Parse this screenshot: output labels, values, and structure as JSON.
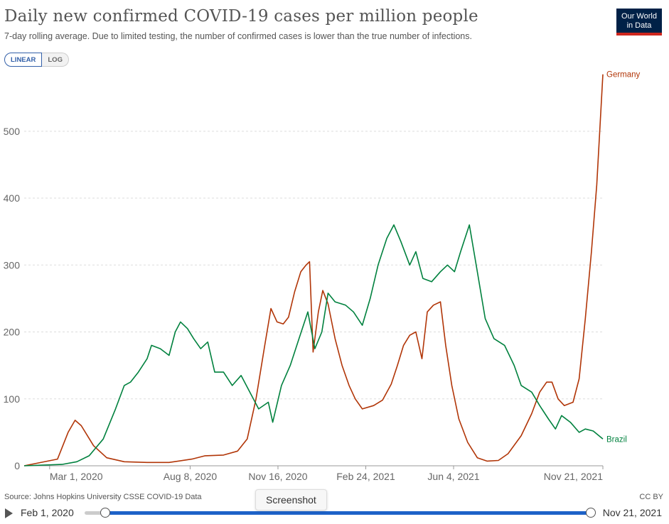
{
  "header": {
    "title": "Daily new confirmed COVID-19 cases per million people",
    "subtitle": "7-day rolling average. Due to limited testing, the number of confirmed cases is lower than the true number of infections.",
    "logo_line1": "Our World",
    "logo_line2": "in Data"
  },
  "toggle": {
    "linear_label": "LINEAR",
    "log_label": "LOG"
  },
  "footer": {
    "source": "Source: Johns Hopkins University CSSE COVID-19 Data",
    "license": "CC BY",
    "tooltip": "Screenshot"
  },
  "timeline": {
    "start_label": "Feb 1, 2020",
    "end_label": "Nov 21, 2021"
  },
  "colors": {
    "germany": "#b13507",
    "brazil": "#00813e",
    "grid": "#dddddd",
    "axis": "#666666"
  },
  "chart_data": {
    "type": "line",
    "title": "Daily new confirmed COVID-19 cases per million people",
    "xlabel": "",
    "ylabel": "",
    "ylim": [
      0,
      590
    ],
    "yticks": [
      0,
      100,
      200,
      300,
      400,
      500
    ],
    "xlim": [
      "2020-02-01",
      "2021-11-21"
    ],
    "xticks": [
      {
        "date": "2020-03-01",
        "label": "Mar 1, 2020"
      },
      {
        "date": "2020-08-08",
        "label": "Aug 8, 2020"
      },
      {
        "date": "2020-11-16",
        "label": "Nov 16, 2020"
      },
      {
        "date": "2021-02-24",
        "label": "Feb 24, 2021"
      },
      {
        "date": "2021-06-04",
        "label": "Jun 4, 2021"
      },
      {
        "date": "2021-11-21",
        "label": "Nov 21, 2021"
      }
    ],
    "grid": true,
    "series": [
      {
        "name": "Germany",
        "color": "#b13507",
        "points": [
          [
            "2020-02-01",
            0
          ],
          [
            "2020-03-10",
            10
          ],
          [
            "2020-03-22",
            50
          ],
          [
            "2020-03-30",
            68
          ],
          [
            "2020-04-06",
            60
          ],
          [
            "2020-04-20",
            30
          ],
          [
            "2020-05-05",
            12
          ],
          [
            "2020-05-25",
            6
          ],
          [
            "2020-06-20",
            5
          ],
          [
            "2020-07-15",
            5
          ],
          [
            "2020-08-10",
            10
          ],
          [
            "2020-08-25",
            15
          ],
          [
            "2020-09-15",
            16
          ],
          [
            "2020-10-01",
            22
          ],
          [
            "2020-10-12",
            40
          ],
          [
            "2020-10-22",
            100
          ],
          [
            "2020-11-01",
            180
          ],
          [
            "2020-11-08",
            235
          ],
          [
            "2020-11-15",
            215
          ],
          [
            "2020-11-22",
            212
          ],
          [
            "2020-11-28",
            222
          ],
          [
            "2020-12-05",
            260
          ],
          [
            "2020-12-12",
            290
          ],
          [
            "2020-12-18",
            300
          ],
          [
            "2020-12-22",
            305
          ],
          [
            "2020-12-26",
            170
          ],
          [
            "2021-01-01",
            230
          ],
          [
            "2021-01-06",
            262
          ],
          [
            "2021-01-12",
            242
          ],
          [
            "2021-01-20",
            190
          ],
          [
            "2021-01-28",
            150
          ],
          [
            "2021-02-05",
            120
          ],
          [
            "2021-02-12",
            100
          ],
          [
            "2021-02-20",
            85
          ],
          [
            "2021-03-05",
            90
          ],
          [
            "2021-03-15",
            98
          ],
          [
            "2021-03-25",
            122
          ],
          [
            "2021-04-01",
            150
          ],
          [
            "2021-04-08",
            180
          ],
          [
            "2021-04-15",
            195
          ],
          [
            "2021-04-22",
            200
          ],
          [
            "2021-04-29",
            160
          ],
          [
            "2021-05-05",
            230
          ],
          [
            "2021-05-12",
            240
          ],
          [
            "2021-05-20",
            245
          ],
          [
            "2021-05-26",
            180
          ],
          [
            "2021-06-02",
            120
          ],
          [
            "2021-06-10",
            70
          ],
          [
            "2021-06-20",
            35
          ],
          [
            "2021-07-01",
            12
          ],
          [
            "2021-07-12",
            7
          ],
          [
            "2021-07-25",
            8
          ],
          [
            "2021-08-05",
            18
          ],
          [
            "2021-08-20",
            45
          ],
          [
            "2021-09-01",
            78
          ],
          [
            "2021-09-10",
            110
          ],
          [
            "2021-09-18",
            125
          ],
          [
            "2021-09-24",
            125
          ],
          [
            "2021-10-01",
            100
          ],
          [
            "2021-10-08",
            90
          ],
          [
            "2021-10-18",
            95
          ],
          [
            "2021-10-25",
            130
          ],
          [
            "2021-11-01",
            220
          ],
          [
            "2021-11-08",
            320
          ],
          [
            "2021-11-14",
            420
          ],
          [
            "2021-11-21",
            585
          ]
        ]
      },
      {
        "name": "Brazil",
        "color": "#00813e",
        "points": [
          [
            "2020-02-01",
            0
          ],
          [
            "2020-03-15",
            2
          ],
          [
            "2020-04-01",
            6
          ],
          [
            "2020-04-15",
            15
          ],
          [
            "2020-05-01",
            40
          ],
          [
            "2020-05-15",
            85
          ],
          [
            "2020-05-25",
            120
          ],
          [
            "2020-06-01",
            125
          ],
          [
            "2020-06-10",
            140
          ],
          [
            "2020-06-20",
            160
          ],
          [
            "2020-06-25",
            180
          ],
          [
            "2020-07-05",
            175
          ],
          [
            "2020-07-15",
            165
          ],
          [
            "2020-07-22",
            200
          ],
          [
            "2020-07-28",
            215
          ],
          [
            "2020-08-05",
            205
          ],
          [
            "2020-08-12",
            190
          ],
          [
            "2020-08-20",
            175
          ],
          [
            "2020-08-28",
            185
          ],
          [
            "2020-09-05",
            140
          ],
          [
            "2020-09-15",
            140
          ],
          [
            "2020-09-25",
            120
          ],
          [
            "2020-10-05",
            135
          ],
          [
            "2020-10-15",
            110
          ],
          [
            "2020-10-25",
            85
          ],
          [
            "2020-11-05",
            95
          ],
          [
            "2020-11-10",
            65
          ],
          [
            "2020-11-20",
            120
          ],
          [
            "2020-11-30",
            150
          ],
          [
            "2020-12-10",
            190
          ],
          [
            "2020-12-20",
            230
          ],
          [
            "2020-12-28",
            175
          ],
          [
            "2021-01-05",
            200
          ],
          [
            "2021-01-12",
            258
          ],
          [
            "2021-01-20",
            245
          ],
          [
            "2021-02-01",
            240
          ],
          [
            "2021-02-10",
            230
          ],
          [
            "2021-02-20",
            210
          ],
          [
            "2021-03-01",
            250
          ],
          [
            "2021-03-10",
            300
          ],
          [
            "2021-03-20",
            340
          ],
          [
            "2021-03-28",
            360
          ],
          [
            "2021-04-05",
            335
          ],
          [
            "2021-04-15",
            300
          ],
          [
            "2021-04-22",
            320
          ],
          [
            "2021-04-30",
            280
          ],
          [
            "2021-05-10",
            275
          ],
          [
            "2021-05-20",
            290
          ],
          [
            "2021-05-28",
            300
          ],
          [
            "2021-06-05",
            290
          ],
          [
            "2021-06-12",
            320
          ],
          [
            "2021-06-22",
            360
          ],
          [
            "2021-07-01",
            290
          ],
          [
            "2021-07-10",
            220
          ],
          [
            "2021-07-20",
            190
          ],
          [
            "2021-08-01",
            180
          ],
          [
            "2021-08-12",
            150
          ],
          [
            "2021-08-20",
            120
          ],
          [
            "2021-09-01",
            110
          ],
          [
            "2021-09-10",
            90
          ],
          [
            "2021-09-20",
            70
          ],
          [
            "2021-09-28",
            55
          ],
          [
            "2021-10-05",
            75
          ],
          [
            "2021-10-15",
            65
          ],
          [
            "2021-10-25",
            50
          ],
          [
            "2021-11-01",
            55
          ],
          [
            "2021-11-10",
            52
          ],
          [
            "2021-11-21",
            40
          ]
        ]
      }
    ]
  }
}
